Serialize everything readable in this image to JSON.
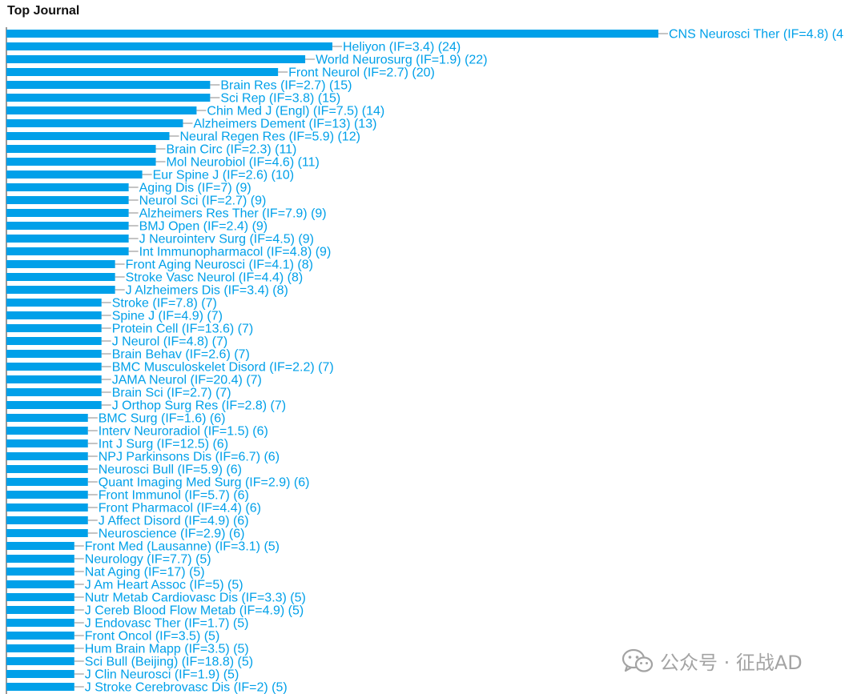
{
  "chart_data": {
    "type": "bar",
    "orientation": "horizontal",
    "title": "Top Journal",
    "xlabel": "",
    "ylabel": "",
    "grid": false,
    "legend": "none",
    "bar_color": "#00a0e9",
    "label_color": "#00a0e9",
    "categories": [
      "CNS Neurosci Ther (IF=4.8) (4",
      "Heliyon (IF=3.4) (24)",
      "World Neurosurg (IF=1.9) (22)",
      "Front Neurol (IF=2.7) (20)",
      "Brain Res (IF=2.7) (15)",
      "Sci Rep (IF=3.8) (15)",
      "Chin Med J (Engl) (IF=7.5) (14)",
      "Alzheimers Dement (IF=13) (13)",
      "Neural Regen Res (IF=5.9) (12)",
      "Brain Circ (IF=2.3) (11)",
      "Mol Neurobiol (IF=4.6) (11)",
      "Eur Spine J (IF=2.6) (10)",
      "Aging Dis (IF=7) (9)",
      "Neurol Sci (IF=2.7) (9)",
      "Alzheimers Res Ther (IF=7.9) (9)",
      "BMJ Open (IF=2.4) (9)",
      "J Neurointerv Surg (IF=4.5) (9)",
      "Int Immunopharmacol (IF=4.8) (9)",
      "Front Aging Neurosci (IF=4.1) (8)",
      "Stroke Vasc Neurol (IF=4.4) (8)",
      "J Alzheimers Dis (IF=3.4) (8)",
      "Stroke (IF=7.8) (7)",
      "Spine J (IF=4.9) (7)",
      "Protein Cell (IF=13.6) (7)",
      "J Neurol (IF=4.8) (7)",
      "Brain Behav (IF=2.6) (7)",
      "BMC Musculoskelet Disord (IF=2.2) (7)",
      "JAMA Neurol (IF=20.4) (7)",
      "Brain Sci (IF=2.7) (7)",
      "J Orthop Surg Res (IF=2.8) (7)",
      "BMC Surg (IF=1.6) (6)",
      "Interv Neuroradiol (IF=1.5) (6)",
      "Int J Surg (IF=12.5) (6)",
      "NPJ Parkinsons Dis (IF=6.7) (6)",
      "Neurosci Bull (IF=5.9) (6)",
      "Quant Imaging Med Surg (IF=2.9) (6)",
      "Front Immunol (IF=5.7) (6)",
      "Front Pharmacol (IF=4.4) (6)",
      "J Affect Disord (IF=4.9) (6)",
      "Neuroscience (IF=2.9) (6)",
      "Front Med (Lausanne) (IF=3.1) (5)",
      "Neurology (IF=7.7) (5)",
      "Nat Aging (IF=17) (5)",
      "J Am Heart Assoc (IF=5) (5)",
      "Nutr Metab Cardiovasc Dis (IF=3.3) (5)",
      "J Cereb Blood Flow Metab (IF=4.9) (5)",
      "J Endovasc Ther (IF=1.7) (5)",
      "Front Oncol (IF=3.5) (5)",
      "Hum Brain Mapp (IF=3.5) (5)",
      "Sci Bull (Beijing) (IF=18.8) (5)",
      "J Clin Neurosci (IF=1.9) (5)",
      "J Stroke Cerebrovasc Dis (IF=2) (5)"
    ],
    "values": [
      48,
      24,
      22,
      20,
      15,
      15,
      14,
      13,
      12,
      11,
      11,
      10,
      9,
      9,
      9,
      9,
      9,
      9,
      8,
      8,
      8,
      7,
      7,
      7,
      7,
      7,
      7,
      7,
      7,
      7,
      6,
      6,
      6,
      6,
      6,
      6,
      6,
      6,
      6,
      6,
      5,
      5,
      5,
      5,
      5,
      5,
      5,
      5,
      5,
      5,
      5,
      5
    ],
    "xlim": [
      0,
      48
    ]
  },
  "watermark": {
    "text": "公众号 · 征战AD",
    "icon": "wechat-icon"
  }
}
